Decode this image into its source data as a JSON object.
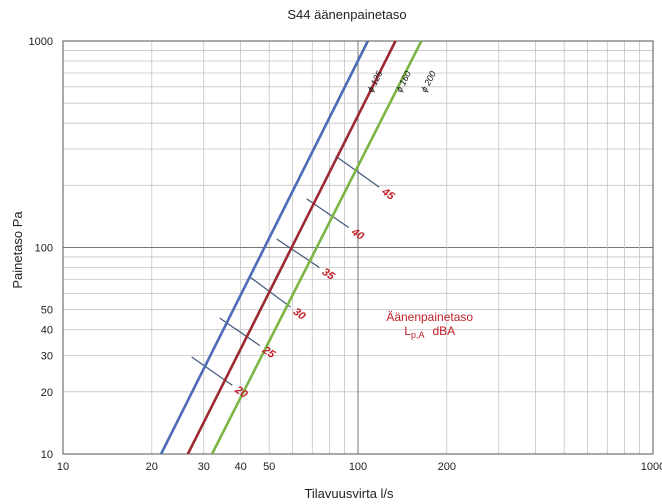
{
  "chart_data": {
    "type": "line",
    "title": "S44 äänenpainetaso",
    "xlabel": "Tilavuusvirta l/s",
    "ylabel": "Painetaso Pa",
    "x_scale": "log",
    "y_scale": "log",
    "xlim": [
      10,
      1000
    ],
    "ylim": [
      10,
      1000
    ],
    "grid": true,
    "x_tick_labels": [
      {
        "value": 10,
        "label": "10"
      },
      {
        "value": 20,
        "label": "20"
      },
      {
        "value": 30,
        "label": "30"
      },
      {
        "value": 40,
        "label": "40"
      },
      {
        "value": 50,
        "label": "50"
      },
      {
        "value": 100,
        "label": "100"
      },
      {
        "value": 200,
        "label": "200"
      },
      {
        "value": 1000,
        "label": "1000"
      }
    ],
    "y_tick_labels": [
      {
        "value": 10,
        "label": "10"
      },
      {
        "value": 20,
        "label": "20"
      },
      {
        "value": 30,
        "label": "30"
      },
      {
        "value": 40,
        "label": "40"
      },
      {
        "value": 50,
        "label": "50"
      },
      {
        "value": 100,
        "label": "100"
      },
      {
        "value": 1000,
        "label": "1000"
      }
    ],
    "series": [
      {
        "name": "ϕ 125",
        "color": "#4a6cb4",
        "x": [
          21.5,
          108
        ],
        "y": [
          10,
          1000
        ],
        "label_at": [
          112,
          560
        ]
      },
      {
        "name": "ϕ 160",
        "color": "#9c2a32",
        "x": [
          26.5,
          134
        ],
        "y": [
          10,
          1000
        ],
        "label_at": [
          140,
          560
        ]
      },
      {
        "name": "ϕ 200",
        "color": "#7bb544",
        "x": [
          32,
          164
        ],
        "y": [
          10,
          1000
        ],
        "label_at": [
          170,
          560
        ]
      }
    ],
    "sound_levels": {
      "color": "#44587a",
      "label_color": "#c0202a",
      "lines": [
        {
          "label": "20",
          "x": [
            27.3,
            37.5
          ],
          "y": [
            29.5,
            21.5
          ]
        },
        {
          "label": "25",
          "x": [
            34,
            46.5
          ],
          "y": [
            45.5,
            33.5
          ]
        },
        {
          "label": "30",
          "x": [
            43,
            59
          ],
          "y": [
            72,
            51.5
          ]
        },
        {
          "label": "35",
          "x": [
            53,
            74
          ],
          "y": [
            110,
            80
          ]
        },
        {
          "label": "40",
          "x": [
            67,
            93
          ],
          "y": [
            172,
            125
          ]
        },
        {
          "label": "45",
          "x": [
            84,
            118
          ],
          "y": [
            277,
            196
          ]
        }
      ]
    },
    "annotation": {
      "line1": "Äänenpainetaso",
      "line2_main": "L",
      "line2_sub": "p,A",
      "line2_unit": "dBA",
      "color": "#c0202a",
      "x": 175,
      "y": 44
    }
  }
}
